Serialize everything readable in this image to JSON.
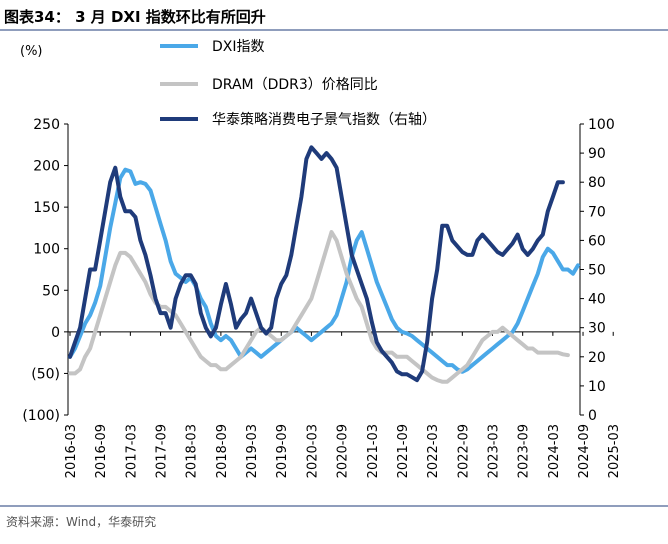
{
  "header": {
    "title": "图表34：  3 月 DXI 指数环比有所回升"
  },
  "source": "资料来源：Wind，华泰研究",
  "chart_data": {
    "type": "line",
    "left_axis_label": "(%)",
    "left_axis": {
      "min": -100,
      "max": 250,
      "ticks": [
        -100,
        -50,
        0,
        50,
        100,
        150,
        200,
        250
      ],
      "tick_labels": [
        "(100)",
        "(50)",
        "0",
        "50",
        "100",
        "150",
        "200",
        "250"
      ]
    },
    "right_axis": {
      "min": 0,
      "max": 100,
      "ticks": [
        0,
        10,
        20,
        30,
        40,
        50,
        60,
        70,
        80,
        90,
        100
      ],
      "tick_labels": [
        "0",
        "10",
        "20",
        "30",
        "40",
        "50",
        "60",
        "70",
        "80",
        "90",
        "100"
      ]
    },
    "x_start": "2016-03",
    "x_tick_labels": [
      "2016-03",
      "2016-09",
      "2017-03",
      "2017-09",
      "2018-03",
      "2018-09",
      "2019-03",
      "2019-09",
      "2020-03",
      "2020-09",
      "2021-03",
      "2021-09",
      "2022-03",
      "2022-09",
      "2023-03",
      "2023-09",
      "2024-03",
      "2024-09",
      "2025-03"
    ],
    "grid": false,
    "legend_position": "top",
    "series": [
      {
        "name": "DXI指数",
        "axis": "left",
        "color": "#4aa8e8",
        "values": [
          -30,
          -20,
          -5,
          10,
          20,
          35,
          55,
          90,
          125,
          155,
          185,
          195,
          193,
          178,
          180,
          178,
          170,
          150,
          130,
          110,
          85,
          70,
          65,
          60,
          65,
          55,
          40,
          30,
          10,
          -5,
          -10,
          -5,
          -10,
          -20,
          -30,
          -25,
          -20,
          -25,
          -30,
          -25,
          -20,
          -15,
          -10,
          -5,
          0,
          5,
          0,
          -5,
          -10,
          -5,
          0,
          5,
          10,
          20,
          40,
          60,
          90,
          110,
          120,
          100,
          80,
          60,
          45,
          30,
          15,
          5,
          0,
          -2,
          -5,
          -10,
          -15,
          -20,
          -25,
          -30,
          -35,
          -40,
          -40,
          -45,
          -48,
          -45,
          -40,
          -35,
          -30,
          -25,
          -20,
          -15,
          -10,
          -5,
          0,
          10,
          25,
          40,
          55,
          70,
          90,
          100,
          95,
          85,
          75,
          75,
          70,
          80
        ]
      },
      {
        "name": "DRAM（DDR3）价格同比",
        "axis": "left",
        "color": "#c4c4c4",
        "values": [
          -50,
          -50,
          -45,
          -30,
          -20,
          0,
          20,
          40,
          60,
          80,
          95,
          95,
          90,
          80,
          70,
          60,
          45,
          35,
          30,
          30,
          25,
          20,
          10,
          0,
          -10,
          -20,
          -30,
          -35,
          -40,
          -40,
          -45,
          -45,
          -40,
          -35,
          -30,
          -20,
          -10,
          0,
          5,
          0,
          -5,
          -10,
          -10,
          -5,
          0,
          10,
          20,
          30,
          40,
          60,
          80,
          100,
          120,
          110,
          90,
          70,
          55,
          40,
          30,
          10,
          -10,
          -20,
          -25,
          -25,
          -25,
          -30,
          -30,
          -30,
          -35,
          -40,
          -45,
          -50,
          -55,
          -58,
          -60,
          -60,
          -55,
          -50,
          -45,
          -40,
          -30,
          -20,
          -10,
          -5,
          0,
          0,
          5,
          0,
          -5,
          -10,
          -15,
          -20,
          -20,
          -25,
          -25,
          -25,
          -25,
          -25,
          -27,
          -28
        ]
      },
      {
        "name": "华泰策略消费电子景气指数（右轴）",
        "axis": "right",
        "color": "#1f3b7a",
        "values": [
          20,
          25,
          30,
          40,
          50,
          50,
          60,
          70,
          80,
          85,
          75,
          70,
          70,
          68,
          60,
          55,
          48,
          40,
          35,
          35,
          30,
          40,
          45,
          48,
          48,
          45,
          35,
          30,
          27,
          30,
          38,
          45,
          38,
          30,
          33,
          35,
          40,
          35,
          30,
          28,
          30,
          40,
          45,
          48,
          55,
          65,
          75,
          88,
          92,
          90,
          88,
          90,
          88,
          85,
          75,
          65,
          55,
          50,
          45,
          40,
          32,
          25,
          22,
          20,
          18,
          15,
          14,
          14,
          13,
          12,
          15,
          25,
          40,
          50,
          65,
          65,
          60,
          58,
          56,
          55,
          55,
          60,
          62,
          60,
          58,
          56,
          55,
          57,
          59,
          62,
          57,
          55,
          57,
          60,
          62,
          70,
          75,
          80,
          80
        ]
      }
    ]
  }
}
